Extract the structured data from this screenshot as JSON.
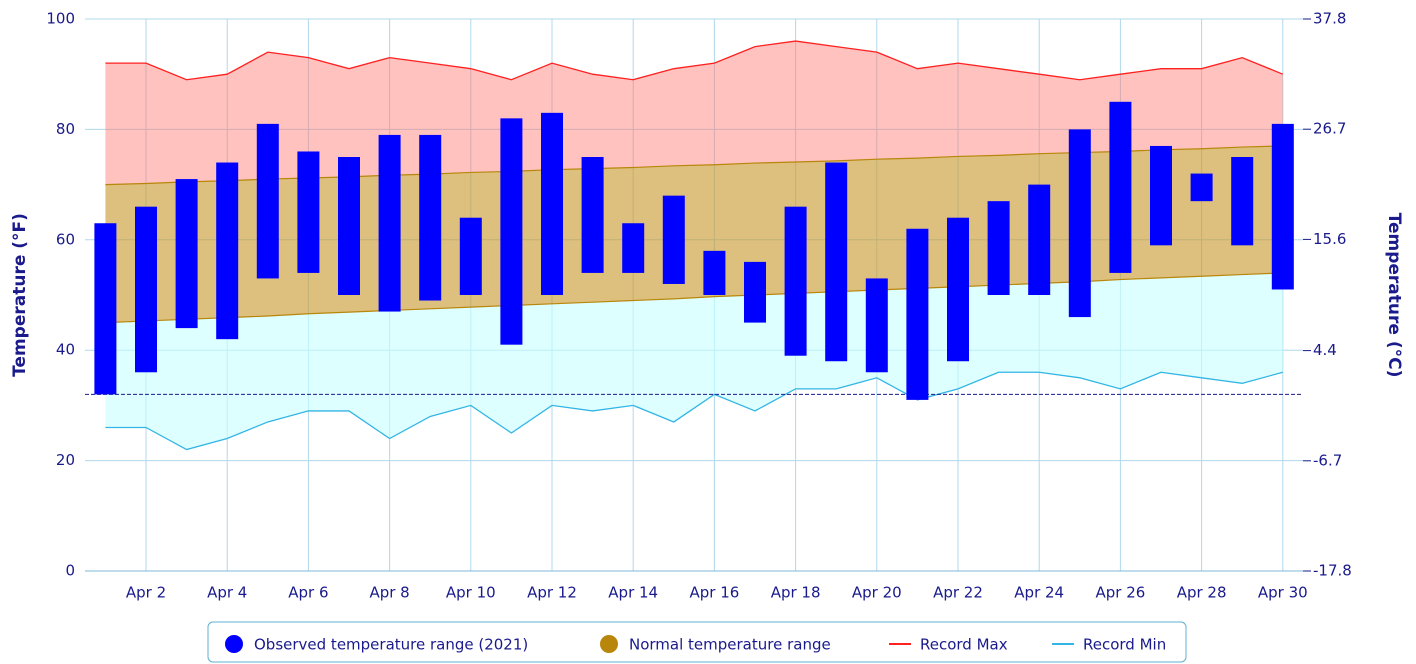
{
  "chart_data": {
    "type": "range",
    "ylabel": "Temperature (°F)",
    "y2label": "Temperature (°C)",
    "categories": [
      null,
      "Apr 2",
      null,
      "Apr 4",
      null,
      "Apr 6",
      null,
      "Apr 8",
      null,
      "Apr 10",
      null,
      "Apr 12",
      null,
      "Apr 14",
      null,
      "Apr 16",
      null,
      "Apr 18",
      null,
      "Apr 20",
      null,
      "Apr 22",
      null,
      "Apr 24",
      null,
      "Apr 26",
      null,
      "Apr 28",
      null,
      "Apr 30"
    ],
    "ylim": [
      0,
      100
    ],
    "yticks": [
      0,
      20,
      40,
      60,
      80,
      100
    ],
    "y2lim": [
      -17.8,
      37.8
    ],
    "y2ticks": [
      -17.8,
      -6.7,
      4.4,
      15.6,
      26.7,
      37.8
    ],
    "reference_line": 32,
    "grid": true,
    "legend": "bottom",
    "series": [
      {
        "name": "Observed temperature range (2021)",
        "color": "#0000ff",
        "low": [
          32,
          36,
          44,
          42,
          53,
          54,
          50,
          47,
          49,
          50,
          41,
          50,
          54,
          54,
          52,
          50,
          45,
          39,
          38,
          36,
          31,
          38,
          50,
          50,
          46,
          54,
          59,
          67,
          59,
          51
        ],
        "high": [
          63,
          66,
          71,
          74,
          81,
          76,
          75,
          79,
          79,
          64,
          82,
          83,
          75,
          63,
          68,
          58,
          56,
          66,
          74,
          53,
          62,
          64,
          67,
          70,
          80,
          85,
          77,
          72,
          75,
          81
        ]
      },
      {
        "name": "Normal temperature range",
        "color": "#b8860b",
        "low": [
          45,
          45.3,
          45.6,
          45.9,
          46.2,
          46.6,
          46.9,
          47.2,
          47.5,
          47.8,
          48.1,
          48.4,
          48.7,
          49,
          49.3,
          49.7,
          50,
          50.3,
          50.6,
          50.9,
          51.2,
          51.5,
          51.8,
          52.1,
          52.4,
          52.8,
          53.1,
          53.4,
          53.7,
          54
        ],
        "high": [
          70,
          70.2,
          70.5,
          70.7,
          71,
          71.2,
          71.4,
          71.7,
          71.9,
          72.2,
          72.4,
          72.7,
          72.9,
          73.1,
          73.4,
          73.6,
          73.9,
          74.1,
          74.3,
          74.6,
          74.8,
          75.1,
          75.3,
          75.6,
          75.8,
          76,
          76.3,
          76.5,
          76.8,
          77
        ]
      },
      {
        "name": "Record Max",
        "color": "#ff2020",
        "values": [
          92,
          92,
          89,
          90,
          94,
          93,
          91,
          93,
          92,
          91,
          89,
          92,
          90,
          89,
          91,
          92,
          95,
          96,
          95,
          94,
          91,
          92,
          91,
          90,
          89,
          90,
          91,
          91,
          93,
          90
        ]
      },
      {
        "name": "Record Min",
        "color": "#33b5e5",
        "values": [
          26,
          26,
          22,
          24,
          27,
          29,
          29,
          24,
          28,
          30,
          25,
          30,
          29,
          30,
          27,
          32,
          29,
          33,
          33,
          35,
          31,
          33,
          36,
          36,
          35,
          33,
          36,
          35,
          34,
          36
        ]
      }
    ]
  }
}
